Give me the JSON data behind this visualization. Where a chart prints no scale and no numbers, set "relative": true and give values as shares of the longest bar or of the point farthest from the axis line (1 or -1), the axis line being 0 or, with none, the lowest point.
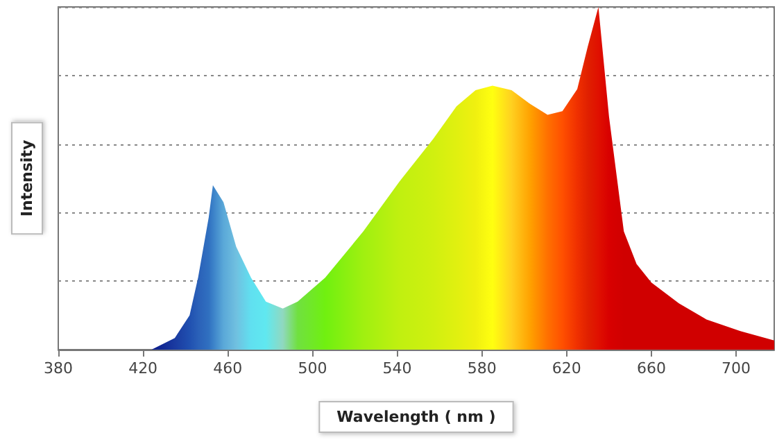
{
  "chart_data": {
    "type": "area",
    "xlabel": "Wavelength ( nm )",
    "ylabel": "Intensity",
    "relative": true,
    "grid": "y",
    "xlim": [
      380,
      718
    ],
    "xticks": [
      380,
      420,
      460,
      500,
      540,
      580,
      620,
      660,
      700
    ],
    "series": [
      {
        "x": [
          424,
          435,
          442,
          446,
          451,
          453,
          458,
          464,
          471,
          478,
          486,
          493,
          506,
          524,
          541,
          557,
          568,
          577,
          585,
          594,
          603,
          611,
          618,
          625,
          630,
          635,
          640,
          647,
          653,
          660,
          673,
          686,
          702,
          718
        ],
        "values": [
          0,
          0.034,
          0.1,
          0.21,
          0.385,
          0.48,
          0.43,
          0.3,
          0.21,
          0.14,
          0.12,
          0.14,
          0.21,
          0.345,
          0.49,
          0.615,
          0.71,
          0.757,
          0.77,
          0.757,
          0.716,
          0.685,
          0.696,
          0.76,
          0.885,
          1,
          0.68,
          0.345,
          0.25,
          0.196,
          0.135,
          0.088,
          0.054,
          0.027
        ],
        "colors": [
          "#0a1a8a",
          "#1a3aa0",
          "#2050b0",
          "#2a60b8",
          "#3070c0",
          "#3a80c8",
          "#5aa8d8",
          "#70c0e0",
          "#60e0f0",
          "#60e8f0",
          "#90d8c0",
          "#70e040",
          "#70f010",
          "#a0f010",
          "#c0f010",
          "#d0f010",
          "#e0f010",
          "#f0f010",
          "#ffff10",
          "#ffd020",
          "#ffa000",
          "#ff7000",
          "#ff5000",
          "#f03000",
          "#e02000",
          "#e01000",
          "#d80000",
          "#d00000",
          "#d00000",
          "#d00000",
          "#d00000",
          "#d00000",
          "#d00000",
          "#d00000"
        ]
      }
    ]
  }
}
